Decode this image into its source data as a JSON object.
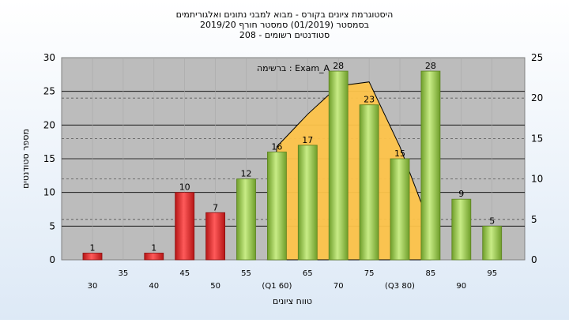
{
  "chart_data": {
    "type": "bar",
    "title_lines": [
      "היסטוגרמת ציונים בקורס - מבוא למבני נתונים ואלגוריתמים",
      "בסמסטר  (01/2019)  סמסטר חורף 2019/20",
      "סטודנטים רשומים - 208"
    ],
    "xlabel": "טווח ציונים",
    "ylabel": "מספר סטודנטים",
    "exam_label": "ברשימה : Exam_A",
    "x_tick_labels": [
      "30",
      "35",
      "40",
      "45",
      "50",
      "55",
      "(Q1 60)",
      "65",
      "70",
      "75",
      "(Q3 80)",
      "85",
      "90",
      "95"
    ],
    "ylim_left": [
      0,
      30
    ],
    "left_ticks": [
      0,
      5,
      10,
      15,
      20,
      25,
      30
    ],
    "ylim_right": [
      0,
      25
    ],
    "right_ticks": [
      0,
      5,
      10,
      15,
      20,
      25
    ],
    "grid": true,
    "bars": [
      {
        "x": "30",
        "value": 1,
        "color": "red"
      },
      {
        "x": "35",
        "value": 0,
        "color": "none"
      },
      {
        "x": "40",
        "value": 1,
        "color": "red"
      },
      {
        "x": "45",
        "value": 10,
        "color": "red"
      },
      {
        "x": "50",
        "value": 7,
        "color": "red"
      },
      {
        "x": "55",
        "value": 12,
        "color": "green"
      },
      {
        "x": "60",
        "value": 16,
        "color": "green"
      },
      {
        "x": "65",
        "value": 17,
        "color": "green"
      },
      {
        "x": "70",
        "value": 28,
        "color": "green"
      },
      {
        "x": "75",
        "value": 23,
        "color": "green"
      },
      {
        "x": "80",
        "value": 15,
        "color": "green"
      },
      {
        "x": "85",
        "value": 28,
        "color": "green"
      },
      {
        "x": "90",
        "value": 9,
        "color": "green"
      },
      {
        "x": "95",
        "value": 5,
        "color": "green"
      }
    ],
    "distribution_curve": {
      "x": [
        "60",
        "65",
        "70",
        "75",
        "80",
        "85"
      ],
      "y_right_axis": [
        14,
        18,
        21.5,
        22,
        14,
        4
      ],
      "color": "#fdc34a"
    },
    "colors": {
      "plot_bg": "#bcbcbc",
      "red_bar": "#e02a2a",
      "green_bar": "#9ccc4a",
      "curve_fill": "#fdc34a"
    }
  }
}
